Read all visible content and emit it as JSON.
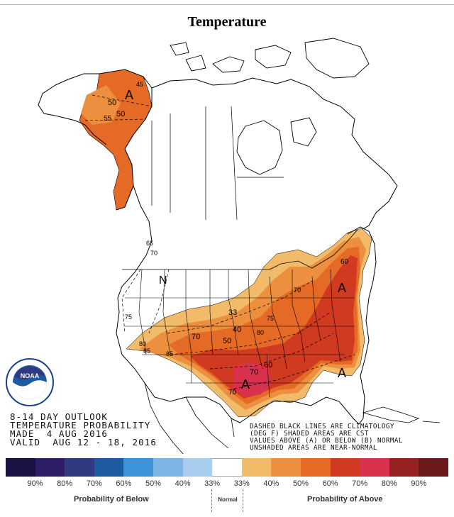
{
  "title": "Temperature",
  "outlook": {
    "line1": "8-14 DAY OUTLOOK",
    "line2": "TEMPERATURE PROBABILITY",
    "line3": "MADE  4 AUG 2016",
    "line4": "VALID  AUG 12 - 18, 2016"
  },
  "legend_note": {
    "line1": "DASHED BLACK LINES ARE CLIMATOLOGY",
    "line2": "(DEG F) SHADED AREAS ARE CST",
    "line3": "VALUES ABOVE (A) OR BELOW (B) NORMAL",
    "line4": "UNSHADED AREAS ARE NEAR-NORMAL"
  },
  "logo": {
    "text": "NOAA",
    "icon": "noaa-logo"
  },
  "map_labels": {
    "alaska_a": "A",
    "alaska_45": "45",
    "alaska_50a": "50",
    "alaska_50b": "50",
    "alaska_55": "55",
    "west_65": "65",
    "west_70": "70",
    "west_75": "75",
    "west_80": "80",
    "west_85": "85",
    "west_n": "N",
    "ne_60": "60",
    "east_a": "A",
    "central_33": "33",
    "central_40": "40",
    "central_75": "75",
    "central_80": "80",
    "central_70a": "70",
    "central_70b": "70",
    "central_50": "50",
    "central_60": "60",
    "south_85": "85",
    "south_70": "70",
    "texas_a": "A",
    "florida_a": "A"
  },
  "scale": {
    "colors": [
      "#1c1244",
      "#2d1d66",
      "#2f3a80",
      "#1e5aa0",
      "#3e93d6",
      "#7cb4e4",
      "#a9cdee",
      "#ffffff",
      "#f1bb6a",
      "#ec8f3f",
      "#e46a25",
      "#cf3a20",
      "#d8324f",
      "#962121",
      "#6a1a1a"
    ],
    "ticks": [
      "90%",
      "80%",
      "70%",
      "60%",
      "50%",
      "40%",
      "33%",
      "33%",
      "40%",
      "50%",
      "60%",
      "70%",
      "80%",
      "90%"
    ],
    "below_label": "Probability of Below",
    "normal_label": "Normal",
    "above_label": "Probability of Above"
  }
}
